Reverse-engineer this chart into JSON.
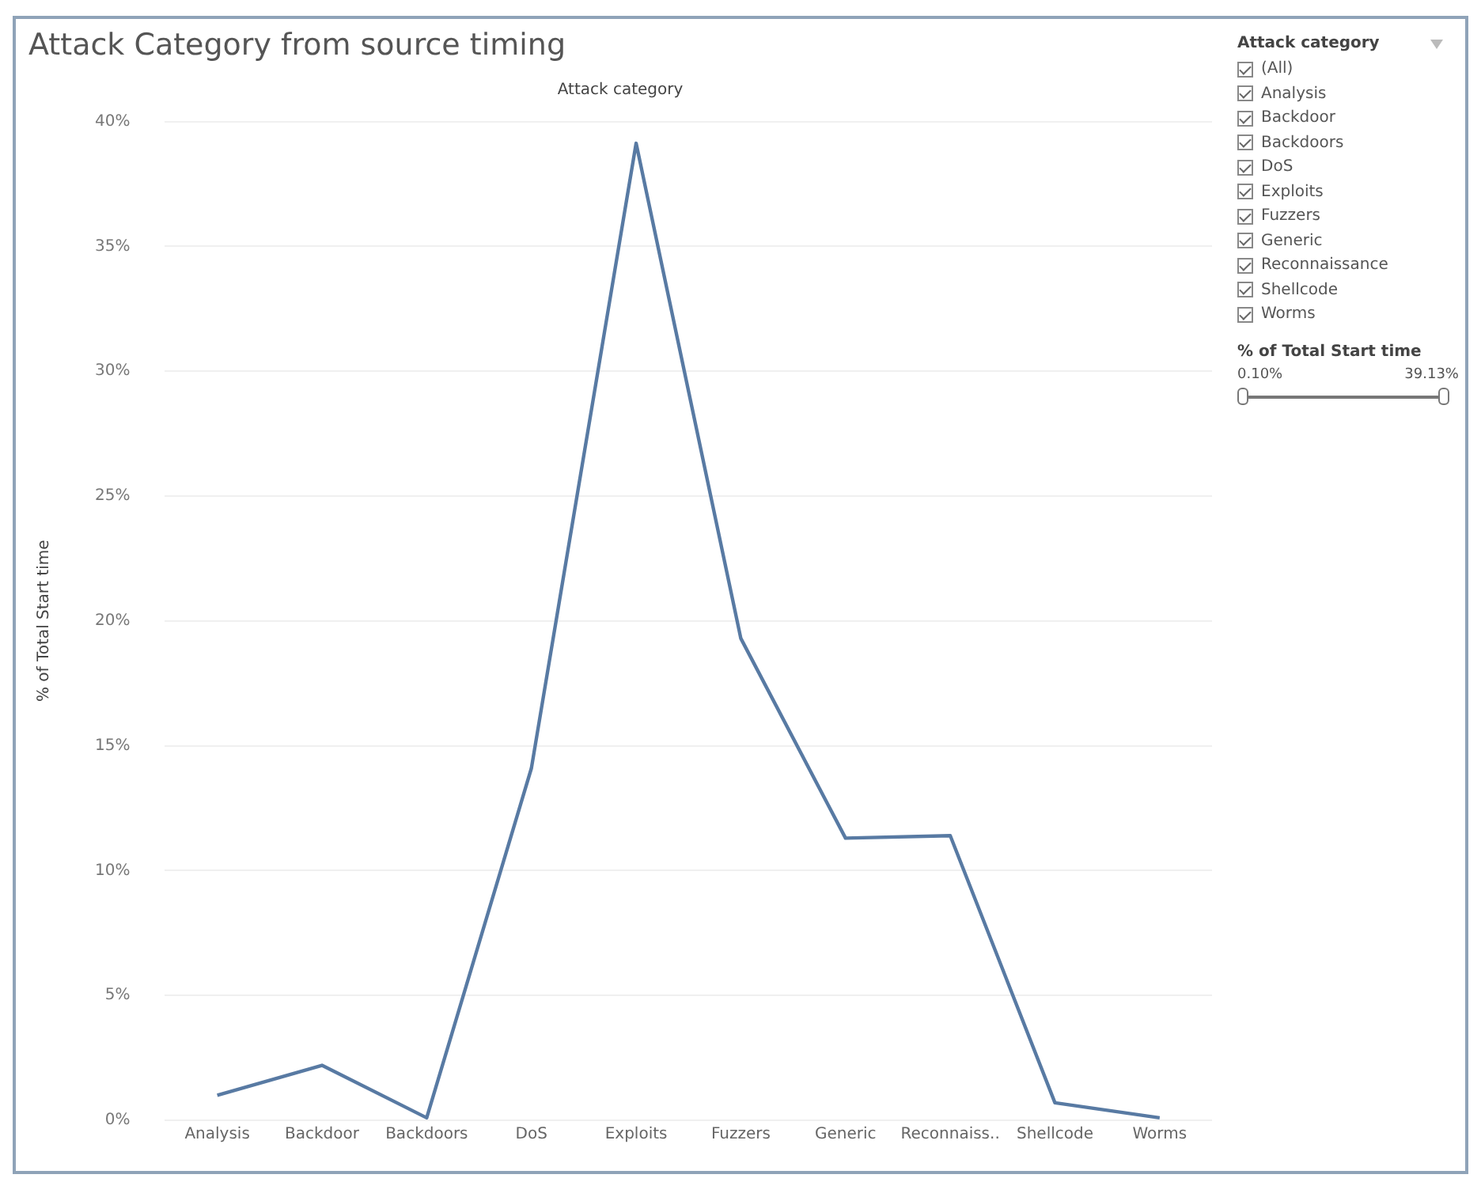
{
  "chart_data": {
    "type": "line",
    "title": "Attack Category from source timing",
    "xlabel": "Attack category",
    "ylabel": "% of Total Start time",
    "categories": [
      "Analysis",
      "Backdoor",
      "Backdoors",
      "DoS",
      "Exploits",
      "Fuzzers",
      "Generic",
      "Reconnaiss..",
      "Shellcode",
      "Worms"
    ],
    "series": [
      {
        "color": "#587aa3",
        "values": [
          1.0,
          2.2,
          0.1,
          14.1,
          39.13,
          19.3,
          11.3,
          11.4,
          0.7,
          0.1
        ]
      }
    ],
    "ylim": [
      0,
      40
    ],
    "yticks": [
      {
        "value": 0,
        "label": "0%"
      },
      {
        "value": 5,
        "label": "5%"
      },
      {
        "value": 10,
        "label": "10%"
      },
      {
        "value": 15,
        "label": "15%"
      },
      {
        "value": 20,
        "label": "20%"
      },
      {
        "value": 25,
        "label": "25%"
      },
      {
        "value": 30,
        "label": "30%"
      },
      {
        "value": 35,
        "label": "35%"
      },
      {
        "value": 40,
        "label": "40%"
      }
    ],
    "grid": "y",
    "legend": false,
    "marker": "none",
    "line_style": "solid",
    "annotations": [
      "Attack category",
      "(All)",
      "Analysis",
      "Backdoor",
      "Backdoors",
      "DoS",
      "Exploits",
      "Fuzzers",
      "Generic",
      "Reconnaissance",
      "Shellcode",
      "Worms",
      "% of Total Start time",
      "0.10%",
      "39.13%"
    ]
  }
}
